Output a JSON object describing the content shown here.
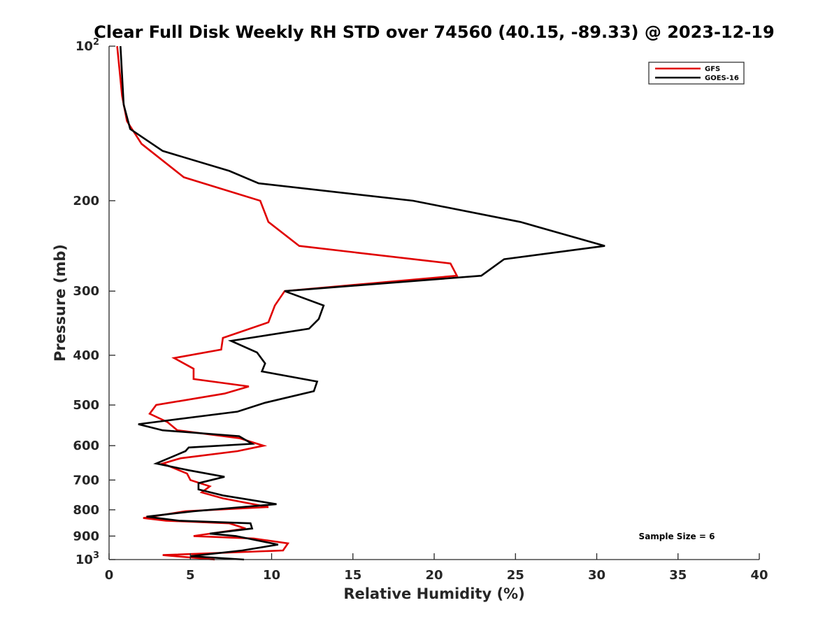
{
  "chart_data": {
    "type": "line",
    "title": "Clear Full Disk Weekly RH STD over 74560 (40.15, -89.33) @ 2023-12-19",
    "xlabel": "Relative Humidity (%)",
    "ylabel": "Pressure (mb)",
    "xlim": [
      0,
      40
    ],
    "ylim": [
      100,
      1000
    ],
    "y_scale": "log",
    "y_reversed": true,
    "grid": false,
    "legend_position": "top-right",
    "x_ticks": [
      {
        "value": 0,
        "label": "0"
      },
      {
        "value": 5,
        "label": "5"
      },
      {
        "value": 10,
        "label": "10"
      },
      {
        "value": 15,
        "label": "15"
      },
      {
        "value": 20,
        "label": "20"
      },
      {
        "value": 25,
        "label": "25"
      },
      {
        "value": 30,
        "label": "30"
      },
      {
        "value": 35,
        "label": "35"
      },
      {
        "value": 40,
        "label": "40"
      }
    ],
    "y_ticks": [
      {
        "value": 100,
        "base": "10",
        "exp": "2"
      },
      {
        "value": 200,
        "label": "200"
      },
      {
        "value": 300,
        "label": "300"
      },
      {
        "value": 400,
        "label": "400"
      },
      {
        "value": 500,
        "label": "500"
      },
      {
        "value": 600,
        "label": "600"
      },
      {
        "value": 700,
        "label": "700"
      },
      {
        "value": 800,
        "label": "800"
      },
      {
        "value": 900,
        "label": "900"
      },
      {
        "value": 1000,
        "base": "10",
        "exp": "3"
      }
    ],
    "annotation": "Sample Size = 6",
    "series": [
      {
        "name": "GFS",
        "color": "#e00000",
        "points": [
          [
            0.5,
            100
          ],
          [
            0.8,
            125
          ],
          [
            1.1,
            140
          ],
          [
            2.0,
            155
          ],
          [
            4.6,
            180
          ],
          [
            9.3,
            200
          ],
          [
            9.8,
            220
          ],
          [
            11.7,
            245
          ],
          [
            21.0,
            265
          ],
          [
            21.4,
            280
          ],
          [
            10.8,
            300
          ],
          [
            10.2,
            320
          ],
          [
            9.8,
            345
          ],
          [
            7.0,
            370
          ],
          [
            6.9,
            390
          ],
          [
            4.0,
            405
          ],
          [
            5.2,
            425
          ],
          [
            5.2,
            445
          ],
          [
            8.6,
            460
          ],
          [
            7.1,
            475
          ],
          [
            2.9,
            500
          ],
          [
            2.5,
            520
          ],
          [
            3.6,
            540
          ],
          [
            4.2,
            560
          ],
          [
            8.0,
            580
          ],
          [
            9.5,
            600
          ],
          [
            7.9,
            615
          ],
          [
            4.4,
            635
          ],
          [
            3.3,
            650
          ],
          [
            4.8,
            680
          ],
          [
            5.0,
            700
          ],
          [
            6.2,
            720
          ],
          [
            5.7,
            740
          ],
          [
            7.0,
            760
          ],
          [
            9.8,
            790
          ],
          [
            4.7,
            805
          ],
          [
            2.1,
            830
          ],
          [
            3.5,
            840
          ],
          [
            7.4,
            850
          ],
          [
            8.4,
            870
          ],
          [
            5.2,
            900
          ],
          [
            8.9,
            910
          ],
          [
            11.0,
            930
          ],
          [
            10.7,
            960
          ],
          [
            3.3,
            980
          ],
          [
            6.5,
            1000
          ]
        ]
      },
      {
        "name": "GOES-16",
        "color": "#000000",
        "points": [
          [
            0.7,
            100
          ],
          [
            0.9,
            130
          ],
          [
            1.3,
            145
          ],
          [
            3.3,
            160
          ],
          [
            7.4,
            175
          ],
          [
            9.2,
            185
          ],
          [
            18.7,
            200
          ],
          [
            25.3,
            220
          ],
          [
            30.5,
            245
          ],
          [
            24.3,
            260
          ],
          [
            22.9,
            280
          ],
          [
            10.8,
            300
          ],
          [
            13.2,
            320
          ],
          [
            12.9,
            340
          ],
          [
            12.3,
            355
          ],
          [
            7.5,
            375
          ],
          [
            9.1,
            395
          ],
          [
            9.6,
            415
          ],
          [
            9.4,
            430
          ],
          [
            12.8,
            450
          ],
          [
            12.6,
            470
          ],
          [
            9.6,
            495
          ],
          [
            7.9,
            515
          ],
          [
            1.8,
            545
          ],
          [
            3.3,
            560
          ],
          [
            8.0,
            575
          ],
          [
            8.8,
            595
          ],
          [
            4.9,
            605
          ],
          [
            4.7,
            615
          ],
          [
            2.9,
            650
          ],
          [
            4.9,
            670
          ],
          [
            7.1,
            690
          ],
          [
            5.5,
            710
          ],
          [
            5.5,
            730
          ],
          [
            7.0,
            750
          ],
          [
            10.3,
            780
          ],
          [
            5.2,
            805
          ],
          [
            2.3,
            825
          ],
          [
            4.3,
            840
          ],
          [
            8.7,
            850
          ],
          [
            8.8,
            870
          ],
          [
            6.2,
            890
          ],
          [
            7.8,
            900
          ],
          [
            10.4,
            935
          ],
          [
            8.2,
            960
          ],
          [
            5.0,
            985
          ],
          [
            8.3,
            1000
          ]
        ]
      }
    ]
  }
}
